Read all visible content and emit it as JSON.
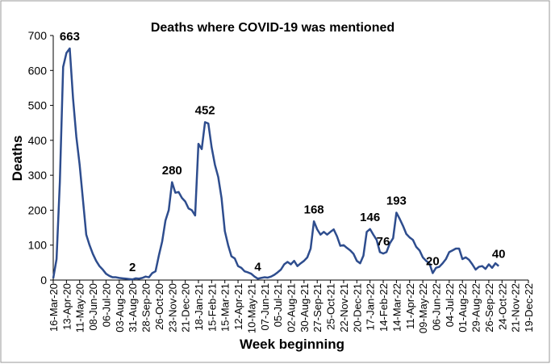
{
  "chart_data": {
    "type": "line",
    "title": "Deaths where COVID-19 was mentioned",
    "x_label": "Week beginning",
    "y_label": "Deaths",
    "ylim": [
      0,
      700
    ],
    "yticks": [
      0,
      100,
      200,
      300,
      400,
      500,
      600,
      700
    ],
    "categories": [
      "16-Mar-20",
      null,
      null,
      null,
      "13-Apr-20",
      null,
      null,
      null,
      "11-May-20",
      null,
      null,
      null,
      "08-Jun-20",
      null,
      null,
      null,
      "06-Jul-20",
      null,
      null,
      null,
      "03-Aug-20",
      null,
      null,
      null,
      "31-Aug-20",
      null,
      null,
      null,
      "28-Sep-20",
      null,
      null,
      null,
      "26-Oct-20",
      null,
      null,
      null,
      "23-Nov-20",
      null,
      null,
      null,
      "21-Dec-20",
      null,
      null,
      null,
      "18-Jan-21",
      null,
      null,
      null,
      "15-Feb-21",
      null,
      null,
      null,
      "15-Mar-21",
      null,
      null,
      null,
      "12-Apr-21",
      null,
      null,
      null,
      "10-May-21",
      null,
      null,
      null,
      "07-Jun-21",
      null,
      null,
      null,
      "05-Jul-21",
      null,
      null,
      null,
      "02-Aug-21",
      null,
      null,
      null,
      "30-Aug-21",
      null,
      null,
      null,
      "27-Sep-21",
      null,
      null,
      null,
      "25-Oct-21",
      null,
      null,
      null,
      "22-Nov-21",
      null,
      null,
      null,
      "20-Dec-21",
      null,
      null,
      null,
      "17-Jan-22",
      null,
      null,
      null,
      "14-Feb-22",
      null,
      null,
      null,
      "14-Mar-22",
      null,
      null,
      null,
      "11-Apr-22",
      null,
      null,
      null,
      "09-May-22",
      null,
      null,
      null,
      "06-Jun-22",
      null,
      null,
      null,
      "04-Jul-22",
      null,
      null,
      null,
      "01-Aug-22",
      null,
      null,
      null,
      "29-Aug-22",
      null,
      null,
      null,
      "26-Sep-22",
      null,
      null,
      null,
      "24-Oct-22",
      null,
      null,
      null,
      "21-Nov-22",
      null,
      null,
      null,
      "19-Dec-22"
    ],
    "series": [
      {
        "name": "Deaths",
        "color": "#2e4d8e",
        "values": [
          5,
          60,
          280,
          610,
          650,
          663,
          520,
          410,
          330,
          230,
          130,
          100,
          75,
          55,
          40,
          30,
          18,
          12,
          8,
          8,
          6,
          5,
          4,
          3,
          2,
          5,
          4,
          6,
          10,
          8,
          20,
          25,
          70,
          110,
          170,
          200,
          280,
          250,
          252,
          235,
          225,
          205,
          200,
          185,
          390,
          375,
          452,
          448,
          380,
          330,
          295,
          235,
          140,
          100,
          68,
          62,
          40,
          35,
          25,
          22,
          18,
          10,
          4,
          6,
          8,
          7,
          10,
          15,
          22,
          30,
          45,
          52,
          45,
          55,
          40,
          48,
          55,
          65,
          90,
          168,
          145,
          130,
          138,
          130,
          138,
          145,
          125,
          98,
          100,
          92,
          85,
          75,
          55,
          48,
          70,
          138,
          146,
          130,
          115,
          80,
          76,
          80,
          105,
          120,
          193,
          175,
          155,
          132,
          122,
          115,
          95,
          85,
          65,
          55,
          48,
          20,
          35,
          38,
          48,
          60,
          80,
          85,
          90,
          90,
          60,
          65,
          58,
          45,
          30,
          38,
          40,
          32,
          45,
          35,
          48,
          40,
          null,
          null,
          null,
          null,
          null,
          null,
          null,
          null,
          null
        ]
      }
    ],
    "labeled_points": [
      5,
      24,
      36,
      46,
      62,
      79,
      96,
      100,
      104,
      115,
      135
    ]
  }
}
